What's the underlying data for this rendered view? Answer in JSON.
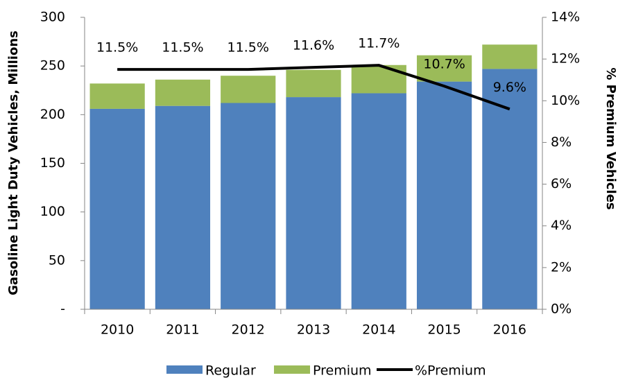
{
  "chart_data": {
    "type": "bar",
    "stacked": true,
    "y_label": "Gasoline Light Duty Vehicles, Millions",
    "y2_label": "% Premium Vehicles",
    "categories": [
      "2010",
      "2011",
      "2012",
      "2013",
      "2014",
      "2015",
      "2016"
    ],
    "series": [
      {
        "name": "Regular",
        "color": "#4f81bd",
        "values": [
          206,
          209,
          212,
          218,
          222,
          234,
          247
        ]
      },
      {
        "name": "Premium",
        "color": "#9bbb59",
        "values": [
          26,
          27,
          28,
          28,
          29,
          27,
          25
        ]
      },
      {
        "name": "%Premium",
        "type": "line",
        "axis": "y2",
        "color": "#000000",
        "values": [
          11.5,
          11.5,
          11.5,
          11.6,
          11.7,
          10.7,
          9.6
        ],
        "value_labels": [
          "11.5%",
          "11.5%",
          "11.5%",
          "11.6%",
          "11.7%",
          "10.7%",
          "9.6%"
        ]
      }
    ],
    "ylim": [
      0,
      300
    ],
    "yticks": [
      {
        "value": 0,
        "label": "-"
      },
      50,
      100,
      150,
      200,
      250,
      300
    ],
    "y2lim": [
      0,
      14
    ],
    "y2ticks": [
      {
        "value": 0,
        "label": "0%"
      },
      {
        "value": 2,
        "label": "2%"
      },
      {
        "value": 4,
        "label": "4%"
      },
      {
        "value": 6,
        "label": "6%"
      },
      {
        "value": 8,
        "label": "8%"
      },
      {
        "value": 10,
        "label": "10%"
      },
      {
        "value": 12,
        "label": "12%"
      },
      {
        "value": 14,
        "label": "14%"
      }
    ],
    "grid": false,
    "legend": "bottom"
  }
}
